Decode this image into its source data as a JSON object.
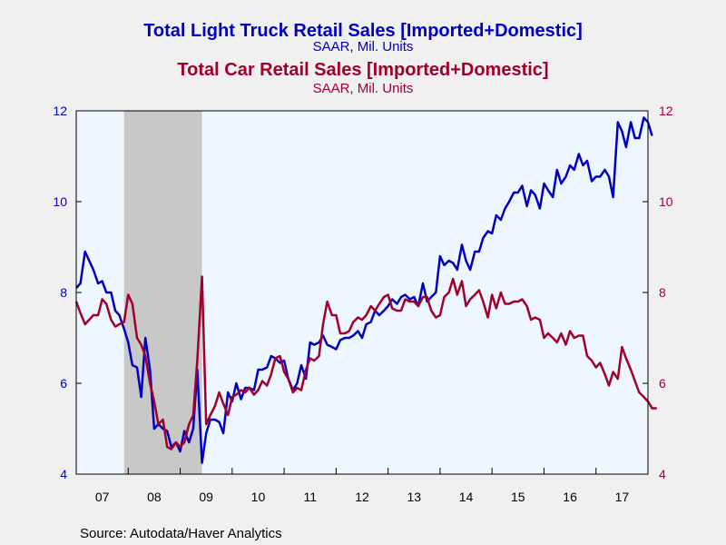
{
  "colors": {
    "truck": "#0000c0",
    "car": "#a0002a",
    "plot_bg": "#eef6ff",
    "recession": "#c8c8c8",
    "page_bg": "#f0f0f0"
  },
  "source": "Source:  Autodata/Haver Analytics",
  "chart_data": {
    "type": "line",
    "titles": [
      {
        "text": "Total Light Truck Retail Sales [Imported+Domestic]",
        "subtitle": "SAAR, Mil. Units",
        "series": "truck"
      },
      {
        "text": "Total Car Retail Sales [Imported+Domestic]",
        "subtitle": "SAAR, Mil. Units",
        "series": "car"
      }
    ],
    "x_range": [
      2007.0,
      2018.0
    ],
    "x_ticks": [
      {
        "label": "07",
        "x": 2007.0
      },
      {
        "label": "08",
        "x": 2008.0
      },
      {
        "label": "09",
        "x": 2009.0
      },
      {
        "label": "10",
        "x": 2010.0
      },
      {
        "label": "11",
        "x": 2011.0
      },
      {
        "label": "12",
        "x": 2012.0
      },
      {
        "label": "13",
        "x": 2013.0
      },
      {
        "label": "14",
        "x": 2014.0
      },
      {
        "label": "15",
        "x": 2015.0
      },
      {
        "label": "16",
        "x": 2016.0
      },
      {
        "label": "17",
        "x": 2017.0
      }
    ],
    "y_left": {
      "range": [
        4,
        12
      ],
      "ticks": [
        "4",
        "6",
        "8",
        "10",
        "12"
      ]
    },
    "y_right": {
      "range": [
        4,
        12
      ],
      "ticks": [
        "4",
        "6",
        "8",
        "10",
        "12"
      ]
    },
    "recession_shading": [
      2007.92,
      2009.42
    ],
    "grid": false,
    "series": [
      {
        "key": "truck",
        "axis": "left",
        "values": [
          [
            2007.0,
            8.1
          ],
          [
            2007.08,
            8.2
          ],
          [
            2007.17,
            8.9
          ],
          [
            2007.25,
            8.7
          ],
          [
            2007.33,
            8.5
          ],
          [
            2007.42,
            8.2
          ],
          [
            2007.5,
            8.25
          ],
          [
            2007.58,
            8.0
          ],
          [
            2007.67,
            8.0
          ],
          [
            2007.75,
            7.6
          ],
          [
            2007.83,
            7.5
          ],
          [
            2007.92,
            7.2
          ],
          [
            2008.0,
            6.9
          ],
          [
            2008.08,
            6.4
          ],
          [
            2008.17,
            6.35
          ],
          [
            2008.25,
            5.7
          ],
          [
            2008.33,
            7.0
          ],
          [
            2008.42,
            6.3
          ],
          [
            2008.5,
            5.0
          ],
          [
            2008.58,
            5.1
          ],
          [
            2008.67,
            5.0
          ],
          [
            2008.75,
            4.95
          ],
          [
            2008.83,
            4.6
          ],
          [
            2008.92,
            4.7
          ],
          [
            2009.0,
            4.5
          ],
          [
            2009.08,
            4.95
          ],
          [
            2009.17,
            4.7
          ],
          [
            2009.25,
            5.0
          ],
          [
            2009.33,
            6.3
          ],
          [
            2009.42,
            4.25
          ],
          [
            2009.5,
            4.9
          ],
          [
            2009.58,
            5.2
          ],
          [
            2009.67,
            5.2
          ],
          [
            2009.75,
            5.15
          ],
          [
            2009.83,
            4.9
          ],
          [
            2009.92,
            5.8
          ],
          [
            2010.0,
            5.6
          ],
          [
            2010.08,
            6.0
          ],
          [
            2010.17,
            5.65
          ],
          [
            2010.25,
            5.9
          ],
          [
            2010.33,
            5.9
          ],
          [
            2010.42,
            5.85
          ],
          [
            2010.5,
            6.3
          ],
          [
            2010.58,
            6.3
          ],
          [
            2010.67,
            6.35
          ],
          [
            2010.75,
            6.6
          ],
          [
            2010.83,
            6.55
          ],
          [
            2010.92,
            6.45
          ],
          [
            2011.0,
            6.5
          ],
          [
            2011.08,
            6.1
          ],
          [
            2011.17,
            5.85
          ],
          [
            2011.25,
            6.0
          ],
          [
            2011.33,
            6.4
          ],
          [
            2011.42,
            6.1
          ],
          [
            2011.5,
            6.9
          ],
          [
            2011.58,
            6.85
          ],
          [
            2011.67,
            6.9
          ],
          [
            2011.75,
            7.05
          ],
          [
            2011.83,
            6.85
          ],
          [
            2011.92,
            6.8
          ],
          [
            2012.0,
            6.75
          ],
          [
            2012.08,
            6.95
          ],
          [
            2012.17,
            7.0
          ],
          [
            2012.25,
            7.0
          ],
          [
            2012.33,
            7.05
          ],
          [
            2012.42,
            7.15
          ],
          [
            2012.5,
            7.0
          ],
          [
            2012.58,
            7.3
          ],
          [
            2012.67,
            7.35
          ],
          [
            2012.75,
            7.6
          ],
          [
            2012.83,
            7.5
          ],
          [
            2012.92,
            7.6
          ],
          [
            2013.0,
            7.7
          ],
          [
            2013.08,
            7.85
          ],
          [
            2013.17,
            7.75
          ],
          [
            2013.25,
            7.9
          ],
          [
            2013.33,
            7.95
          ],
          [
            2013.42,
            7.85
          ],
          [
            2013.5,
            7.9
          ],
          [
            2013.58,
            7.7
          ],
          [
            2013.67,
            8.2
          ],
          [
            2013.75,
            7.8
          ],
          [
            2013.83,
            7.9
          ],
          [
            2013.92,
            8.0
          ],
          [
            2014.0,
            8.8
          ],
          [
            2014.08,
            8.6
          ],
          [
            2014.17,
            8.7
          ],
          [
            2014.25,
            8.65
          ],
          [
            2014.33,
            8.5
          ],
          [
            2014.42,
            9.05
          ],
          [
            2014.5,
            8.7
          ],
          [
            2014.58,
            8.5
          ],
          [
            2014.67,
            8.9
          ],
          [
            2014.75,
            8.9
          ],
          [
            2014.83,
            9.2
          ],
          [
            2014.92,
            9.35
          ],
          [
            2015.0,
            9.3
          ],
          [
            2015.08,
            9.7
          ],
          [
            2015.17,
            9.6
          ],
          [
            2015.25,
            9.85
          ],
          [
            2015.33,
            10.0
          ],
          [
            2015.42,
            10.2
          ],
          [
            2015.5,
            10.2
          ],
          [
            2015.58,
            10.35
          ],
          [
            2015.67,
            9.9
          ],
          [
            2015.75,
            10.25
          ],
          [
            2015.83,
            10.15
          ],
          [
            2015.92,
            9.85
          ],
          [
            2016.0,
            10.4
          ],
          [
            2016.08,
            10.25
          ],
          [
            2016.17,
            10.1
          ],
          [
            2016.25,
            10.7
          ],
          [
            2016.33,
            10.4
          ],
          [
            2016.42,
            10.55
          ],
          [
            2016.5,
            10.8
          ],
          [
            2016.58,
            10.7
          ],
          [
            2016.67,
            11.05
          ],
          [
            2016.75,
            10.8
          ],
          [
            2016.83,
            10.9
          ],
          [
            2016.92,
            10.45
          ],
          [
            2017.0,
            10.55
          ],
          [
            2017.08,
            10.55
          ],
          [
            2017.17,
            10.7
          ],
          [
            2017.25,
            10.55
          ],
          [
            2017.33,
            10.1
          ],
          [
            2017.42,
            11.75
          ],
          [
            2017.5,
            11.55
          ],
          [
            2017.58,
            11.2
          ],
          [
            2017.67,
            11.75
          ],
          [
            2017.75,
            11.4
          ],
          [
            2017.83,
            11.4
          ],
          [
            2017.92,
            11.85
          ],
          [
            2018.0,
            11.75
          ],
          [
            2018.08,
            11.45
          ]
        ]
      },
      {
        "key": "car",
        "axis": "right",
        "values": [
          [
            2007.0,
            7.8
          ],
          [
            2007.08,
            7.55
          ],
          [
            2007.17,
            7.3
          ],
          [
            2007.25,
            7.4
          ],
          [
            2007.33,
            7.5
          ],
          [
            2007.42,
            7.5
          ],
          [
            2007.5,
            7.85
          ],
          [
            2007.58,
            7.75
          ],
          [
            2007.67,
            7.4
          ],
          [
            2007.75,
            7.25
          ],
          [
            2007.83,
            7.3
          ],
          [
            2007.92,
            7.35
          ],
          [
            2008.0,
            7.95
          ],
          [
            2008.08,
            7.75
          ],
          [
            2008.17,
            7.0
          ],
          [
            2008.25,
            6.85
          ],
          [
            2008.33,
            6.6
          ],
          [
            2008.42,
            6.0
          ],
          [
            2008.5,
            5.6
          ],
          [
            2008.58,
            5.1
          ],
          [
            2008.67,
            5.2
          ],
          [
            2008.75,
            4.6
          ],
          [
            2008.83,
            4.55
          ],
          [
            2008.92,
            4.7
          ],
          [
            2009.0,
            4.6
          ],
          [
            2009.08,
            4.7
          ],
          [
            2009.17,
            5.1
          ],
          [
            2009.25,
            5.3
          ],
          [
            2009.33,
            6.5
          ],
          [
            2009.42,
            8.35
          ],
          [
            2009.5,
            5.1
          ],
          [
            2009.58,
            5.3
          ],
          [
            2009.67,
            5.5
          ],
          [
            2009.75,
            5.8
          ],
          [
            2009.83,
            5.55
          ],
          [
            2009.92,
            5.3
          ],
          [
            2010.0,
            5.7
          ],
          [
            2010.08,
            5.75
          ],
          [
            2010.17,
            5.85
          ],
          [
            2010.25,
            5.8
          ],
          [
            2010.33,
            5.9
          ],
          [
            2010.42,
            5.75
          ],
          [
            2010.5,
            5.85
          ],
          [
            2010.58,
            6.05
          ],
          [
            2010.67,
            5.95
          ],
          [
            2010.75,
            6.2
          ],
          [
            2010.83,
            6.55
          ],
          [
            2010.92,
            6.6
          ],
          [
            2011.0,
            6.25
          ],
          [
            2011.08,
            6.1
          ],
          [
            2011.17,
            5.8
          ],
          [
            2011.25,
            5.9
          ],
          [
            2011.33,
            5.85
          ],
          [
            2011.42,
            6.3
          ],
          [
            2011.5,
            6.55
          ],
          [
            2011.58,
            6.5
          ],
          [
            2011.67,
            6.6
          ],
          [
            2011.75,
            7.3
          ],
          [
            2011.83,
            7.8
          ],
          [
            2011.92,
            7.5
          ],
          [
            2012.0,
            7.5
          ],
          [
            2012.08,
            7.1
          ],
          [
            2012.17,
            7.1
          ],
          [
            2012.25,
            7.15
          ],
          [
            2012.33,
            7.35
          ],
          [
            2012.42,
            7.45
          ],
          [
            2012.5,
            7.4
          ],
          [
            2012.58,
            7.5
          ],
          [
            2012.67,
            7.7
          ],
          [
            2012.75,
            7.6
          ],
          [
            2012.83,
            7.75
          ],
          [
            2012.92,
            7.9
          ],
          [
            2013.0,
            7.95
          ],
          [
            2013.08,
            7.65
          ],
          [
            2013.17,
            7.6
          ],
          [
            2013.25,
            7.6
          ],
          [
            2013.33,
            7.85
          ],
          [
            2013.42,
            7.8
          ],
          [
            2013.5,
            7.8
          ],
          [
            2013.58,
            7.7
          ],
          [
            2013.67,
            7.9
          ],
          [
            2013.75,
            7.9
          ],
          [
            2013.83,
            7.6
          ],
          [
            2013.92,
            7.45
          ],
          [
            2014.0,
            7.5
          ],
          [
            2014.08,
            7.9
          ],
          [
            2014.17,
            8.0
          ],
          [
            2014.25,
            8.3
          ],
          [
            2014.33,
            7.95
          ],
          [
            2014.42,
            8.25
          ],
          [
            2014.5,
            7.7
          ],
          [
            2014.58,
            7.85
          ],
          [
            2014.67,
            7.95
          ],
          [
            2014.75,
            8.05
          ],
          [
            2014.83,
            7.8
          ],
          [
            2014.92,
            7.45
          ],
          [
            2015.0,
            7.95
          ],
          [
            2015.08,
            7.65
          ],
          [
            2015.17,
            8.0
          ],
          [
            2015.25,
            7.75
          ],
          [
            2015.33,
            7.75
          ],
          [
            2015.42,
            7.8
          ],
          [
            2015.5,
            7.8
          ],
          [
            2015.58,
            7.85
          ],
          [
            2015.67,
            7.7
          ],
          [
            2015.75,
            7.4
          ],
          [
            2015.83,
            7.45
          ],
          [
            2015.92,
            7.4
          ],
          [
            2016.0,
            7.0
          ],
          [
            2016.08,
            7.1
          ],
          [
            2016.17,
            7.0
          ],
          [
            2016.25,
            6.9
          ],
          [
            2016.33,
            7.1
          ],
          [
            2016.42,
            6.85
          ],
          [
            2016.5,
            7.15
          ],
          [
            2016.58,
            7.0
          ],
          [
            2016.67,
            7.05
          ],
          [
            2016.75,
            7.05
          ],
          [
            2016.83,
            6.6
          ],
          [
            2016.92,
            6.5
          ],
          [
            2017.0,
            6.35
          ],
          [
            2017.08,
            6.45
          ],
          [
            2017.17,
            6.2
          ],
          [
            2017.25,
            5.95
          ],
          [
            2017.33,
            6.25
          ],
          [
            2017.42,
            6.1
          ],
          [
            2017.5,
            6.8
          ],
          [
            2017.58,
            6.55
          ],
          [
            2017.67,
            6.3
          ],
          [
            2017.75,
            6.05
          ],
          [
            2017.83,
            5.8
          ],
          [
            2017.92,
            5.7
          ],
          [
            2018.0,
            5.6
          ],
          [
            2018.08,
            5.45
          ],
          [
            2018.17,
            5.45
          ]
        ]
      }
    ]
  }
}
